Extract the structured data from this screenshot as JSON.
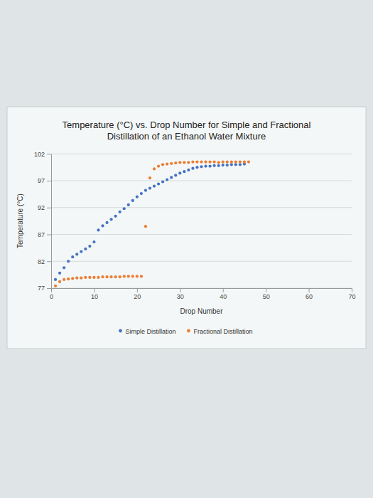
{
  "chart_data": {
    "type": "scatter",
    "title": "Temperature (°C) vs. Drop Number for Simple and Fractional Distillation of an Ethanol Water Mixture",
    "x_label": "Drop Number",
    "y_label": "Temperature (°C)",
    "xlim": [
      0,
      70
    ],
    "xticks": [
      0,
      10,
      20,
      30,
      40,
      50,
      60,
      70
    ],
    "ylim": [
      77,
      102
    ],
    "yticks": [
      77,
      82,
      87,
      92,
      97,
      102
    ],
    "grid": true,
    "legend": "bottom",
    "series": [
      {
        "name": "Simple Distillation",
        "color": "#4472c4",
        "marker": "circle",
        "x": [
          1,
          2,
          3,
          4,
          5,
          6,
          7,
          8,
          9,
          10,
          11,
          12,
          13,
          14,
          15,
          16,
          17,
          18,
          19,
          20,
          21,
          22,
          23,
          24,
          25,
          26,
          27,
          28,
          29,
          30,
          31,
          32,
          33,
          34,
          35,
          36,
          37,
          38,
          39,
          40,
          41,
          42,
          43,
          44,
          45
        ],
        "values": [
          78.6,
          79.8,
          80.8,
          82.0,
          82.8,
          83.3,
          83.8,
          84.3,
          84.8,
          85.6,
          87.8,
          88.6,
          89.2,
          89.8,
          90.4,
          91.2,
          91.8,
          92.5,
          93.3,
          94.0,
          94.6,
          95.2,
          95.6,
          96.0,
          96.4,
          96.8,
          97.2,
          97.6,
          98.0,
          98.4,
          98.7,
          99.0,
          99.3,
          99.5,
          99.6,
          99.7,
          99.7,
          99.8,
          99.8,
          99.9,
          99.9,
          100.0,
          100.0,
          100.0,
          100.1
        ]
      },
      {
        "name": "Fractional Distillation",
        "color": "#ed7d31",
        "marker": "circle",
        "x": [
          1,
          2,
          3,
          4,
          5,
          6,
          7,
          8,
          9,
          10,
          11,
          12,
          13,
          14,
          15,
          16,
          17,
          18,
          19,
          20,
          21,
          22,
          23,
          24,
          25,
          26,
          27,
          28,
          29,
          30,
          31,
          32,
          33,
          34,
          35,
          36,
          37,
          38,
          39,
          40,
          41,
          42,
          43,
          44,
          45,
          46
        ],
        "values": [
          77.4,
          78.2,
          78.6,
          78.7,
          78.8,
          78.9,
          78.9,
          79.0,
          79.0,
          79.0,
          79.0,
          79.1,
          79.1,
          79.1,
          79.1,
          79.1,
          79.2,
          79.2,
          79.2,
          79.2,
          79.2,
          88.5,
          97.5,
          99.2,
          99.7,
          100.0,
          100.1,
          100.2,
          100.3,
          100.4,
          100.4,
          100.4,
          100.5,
          100.5,
          100.5,
          100.5,
          100.5,
          100.5,
          100.4,
          100.5,
          100.5,
          100.5,
          100.5,
          100.5,
          100.5,
          100.5
        ]
      }
    ]
  }
}
